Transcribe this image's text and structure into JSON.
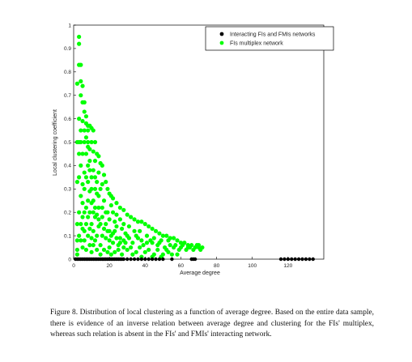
{
  "caption": "Figure 8. Distribution of local clustering as a function of average degree. Based on the entire data sample, there is evidence of an inverse relation between average degree and clustering for the FIs' multiplex, whereas such relation is absent in the FIs' and FMIs' interacting network.",
  "chart_data": {
    "type": "scatter",
    "xlabel": "Average degree",
    "ylabel": "Local clustering coefficient",
    "xlim": [
      0,
      140
    ],
    "ylim": [
      0,
      1
    ],
    "x_ticks": [
      "0",
      "20",
      "40",
      "60",
      "80",
      "100",
      "120"
    ],
    "y_ticks": [
      "0",
      "0.1",
      "0.2",
      "0.3",
      "0.4",
      "0.5",
      "0.6",
      "0.7",
      "0.8",
      "0.9",
      "1"
    ],
    "legend_position": "top-right",
    "grid": false,
    "series": [
      {
        "name": "Interacting FIs and FMIs networks",
        "color": "#000000",
        "points": [
          [
            1,
            0
          ],
          [
            2,
            0
          ],
          [
            3,
            0
          ],
          [
            4,
            0
          ],
          [
            5,
            0
          ],
          [
            6,
            0
          ],
          [
            7,
            0
          ],
          [
            8,
            0
          ],
          [
            9,
            0
          ],
          [
            10,
            0
          ],
          [
            11,
            0
          ],
          [
            12,
            0
          ],
          [
            13,
            0
          ],
          [
            14,
            0
          ],
          [
            15,
            0
          ],
          [
            16,
            0
          ],
          [
            17,
            0
          ],
          [
            18,
            0
          ],
          [
            19,
            0
          ],
          [
            20,
            0
          ],
          [
            21,
            0
          ],
          [
            22,
            0
          ],
          [
            23,
            0
          ],
          [
            24,
            0
          ],
          [
            25,
            0
          ],
          [
            26,
            0
          ],
          [
            27,
            0
          ],
          [
            28,
            0
          ],
          [
            30,
            0
          ],
          [
            32,
            0
          ],
          [
            34,
            0
          ],
          [
            36,
            0
          ],
          [
            38,
            0
          ],
          [
            40,
            0
          ],
          [
            42,
            0
          ],
          [
            44,
            0
          ],
          [
            46,
            0
          ],
          [
            48,
            0
          ],
          [
            50,
            0
          ],
          [
            55,
            0
          ],
          [
            66,
            0
          ],
          [
            67,
            0
          ],
          [
            68,
            0
          ],
          [
            116,
            0
          ],
          [
            118,
            0
          ],
          [
            120,
            0
          ],
          [
            122,
            0
          ],
          [
            124,
            0
          ],
          [
            126,
            0
          ],
          [
            128,
            0
          ],
          [
            130,
            0
          ],
          [
            132,
            0
          ],
          [
            134,
            0
          ]
        ]
      },
      {
        "name": "FIs multiplex network",
        "color": "#00ff00",
        "points": [
          [
            3,
            0.95
          ],
          [
            3,
            0.92
          ],
          [
            3,
            0.83
          ],
          [
            4,
            0.83
          ],
          [
            2,
            0.75
          ],
          [
            4,
            0.76
          ],
          [
            5,
            0.74
          ],
          [
            4,
            0.7
          ],
          [
            5,
            0.67
          ],
          [
            6,
            0.67
          ],
          [
            6,
            0.63
          ],
          [
            7,
            0.61
          ],
          [
            5,
            0.59
          ],
          [
            7,
            0.58
          ],
          [
            8,
            0.57
          ],
          [
            9,
            0.57
          ],
          [
            10,
            0.56
          ],
          [
            8,
            0.55
          ],
          [
            11,
            0.55
          ],
          [
            2,
            0.5
          ],
          [
            3,
            0.5
          ],
          [
            4,
            0.5
          ],
          [
            6,
            0.5
          ],
          [
            8,
            0.5
          ],
          [
            10,
            0.5
          ],
          [
            12,
            0.5
          ],
          [
            9,
            0.47
          ],
          [
            11,
            0.46
          ],
          [
            13,
            0.45
          ],
          [
            14,
            0.44
          ],
          [
            12,
            0.42
          ],
          [
            15,
            0.41
          ],
          [
            16,
            0.4
          ],
          [
            6,
            0.37
          ],
          [
            14,
            0.37
          ],
          [
            17,
            0.36
          ],
          [
            18,
            0.33
          ],
          [
            2,
            0.33
          ],
          [
            16,
            0.32
          ],
          [
            19,
            0.3
          ],
          [
            20,
            0.28
          ],
          [
            21,
            0.27
          ],
          [
            22,
            0.26
          ],
          [
            24,
            0.24
          ],
          [
            26,
            0.22
          ],
          [
            28,
            0.21
          ],
          [
            30,
            0.19
          ],
          [
            32,
            0.18
          ],
          [
            34,
            0.17
          ],
          [
            36,
            0.16
          ],
          [
            38,
            0.16
          ],
          [
            40,
            0.15
          ],
          [
            42,
            0.14
          ],
          [
            44,
            0.13
          ],
          [
            46,
            0.12
          ],
          [
            48,
            0.11
          ],
          [
            50,
            0.1
          ],
          [
            52,
            0.1
          ],
          [
            54,
            0.09
          ],
          [
            56,
            0.09
          ],
          [
            58,
            0.08
          ],
          [
            60,
            0.07
          ],
          [
            62,
            0.07
          ],
          [
            64,
            0.06
          ],
          [
            66,
            0.06
          ],
          [
            68,
            0.05
          ],
          [
            70,
            0.05
          ],
          [
            72,
            0.05
          ],
          [
            2,
            0.08
          ],
          [
            2,
            0.04
          ],
          [
            2,
            0.02
          ],
          [
            5,
            0.13
          ],
          [
            8,
            0.1
          ],
          [
            12,
            0.08
          ],
          [
            15,
            0.06
          ],
          [
            20,
            0.05
          ],
          [
            25,
            0.04
          ],
          [
            30,
            0.04
          ],
          [
            35,
            0.03
          ],
          [
            40,
            0.03
          ],
          [
            45,
            0.02
          ],
          [
            50,
            0.02
          ],
          [
            55,
            0.02
          ],
          [
            58,
            0.02
          ],
          [
            3,
            0.2
          ],
          [
            4,
            0.27
          ],
          [
            5,
            0.32
          ],
          [
            7,
            0.45
          ],
          [
            8,
            0.48
          ],
          [
            9,
            0.38
          ],
          [
            10,
            0.3
          ],
          [
            11,
            0.25
          ],
          [
            12,
            0.35
          ],
          [
            13,
            0.28
          ],
          [
            14,
            0.22
          ],
          [
            16,
            0.18
          ],
          [
            18,
            0.15
          ],
          [
            20,
            0.12
          ],
          [
            22,
            0.11
          ],
          [
            24,
            0.14
          ],
          [
            26,
            0.09
          ],
          [
            28,
            0.08
          ],
          [
            30,
            0.1
          ],
          [
            33,
            0.07
          ],
          [
            36,
            0.09
          ],
          [
            39,
            0.06
          ],
          [
            43,
            0.08
          ],
          [
            47,
            0.06
          ],
          [
            51,
            0.05
          ],
          [
            54,
            0.06
          ],
          [
            59,
            0.04
          ],
          [
            63,
            0.04
          ],
          [
            67,
            0.04
          ],
          [
            26,
            0.17
          ],
          [
            28,
            0.15
          ],
          [
            31,
            0.14
          ],
          [
            34,
            0.12
          ],
          [
            37,
            0.12
          ],
          [
            41,
            0.1
          ],
          [
            45,
            0.09
          ],
          [
            49,
            0.08
          ],
          [
            53,
            0.08
          ],
          [
            57,
            0.06
          ],
          [
            61,
            0.06
          ],
          [
            65,
            0.05
          ],
          [
            69,
            0.06
          ],
          [
            22,
            0.2
          ],
          [
            24,
            0.19
          ],
          [
            21,
            0.23
          ],
          [
            23,
            0.16
          ],
          [
            19,
            0.2
          ],
          [
            17,
            0.25
          ],
          [
            15,
            0.3
          ],
          [
            13,
            0.33
          ],
          [
            11,
            0.38
          ],
          [
            9,
            0.42
          ],
          [
            7,
            0.52
          ],
          [
            6,
            0.55
          ],
          [
            5,
            0.45
          ],
          [
            4,
            0.4
          ],
          [
            3,
            0.35
          ],
          [
            5,
            0.24
          ],
          [
            6,
            0.2
          ],
          [
            7,
            0.15
          ],
          [
            8,
            0.25
          ],
          [
            9,
            0.2
          ],
          [
            10,
            0.15
          ],
          [
            11,
            0.12
          ],
          [
            12,
            0.18
          ],
          [
            13,
            0.1
          ],
          [
            14,
            0.14
          ],
          [
            16,
            0.1
          ],
          [
            18,
            0.09
          ],
          [
            20,
            0.08
          ],
          [
            22,
            0.07
          ],
          [
            25,
            0.06
          ],
          [
            28,
            0.05
          ],
          [
            32,
            0.05
          ],
          [
            37,
            0.05
          ],
          [
            42,
            0.04
          ],
          [
            47,
            0.04
          ],
          [
            52,
            0.04
          ],
          [
            5,
            0.05
          ],
          [
            6,
            0.08
          ],
          [
            7,
            0.04
          ],
          [
            9,
            0.06
          ],
          [
            10,
            0.03
          ],
          [
            11,
            0.06
          ],
          [
            13,
            0.04
          ],
          [
            15,
            0.02
          ],
          [
            17,
            0.04
          ],
          [
            19,
            0.03
          ],
          [
            21,
            0.02
          ],
          [
            23,
            0.03
          ],
          [
            27,
            0.02
          ],
          [
            33,
            0.02
          ],
          [
            38,
            0.01
          ],
          [
            44,
            0.01
          ],
          [
            49,
            0.01
          ],
          [
            53,
            0.03
          ],
          [
            3,
            0.6
          ],
          [
            4,
            0.55
          ],
          [
            8,
            0.4
          ],
          [
            10,
            0.35
          ],
          [
            12,
            0.3
          ],
          [
            14,
            0.27
          ],
          [
            16,
            0.22
          ],
          [
            18,
            0.2
          ],
          [
            20,
            0.17
          ],
          [
            23,
            0.12
          ],
          [
            27,
            0.13
          ],
          [
            29,
            0.11
          ],
          [
            31,
            0.09
          ],
          [
            35,
            0.1
          ],
          [
            38,
            0.08
          ],
          [
            41,
            0.07
          ],
          [
            44,
            0.07
          ],
          [
            48,
            0.07
          ],
          [
            56,
            0.05
          ],
          [
            60,
            0.05
          ],
          [
            64,
            0.05
          ],
          [
            70,
            0.06
          ],
          [
            71,
            0.04
          ],
          [
            6,
            0.3
          ],
          [
            7,
            0.35
          ],
          [
            8,
            0.33
          ],
          [
            9,
            0.29
          ],
          [
            10,
            0.24
          ],
          [
            11,
            0.2
          ],
          [
            12,
            0.22
          ],
          [
            13,
            0.19
          ],
          [
            14,
            0.17
          ],
          [
            15,
            0.15
          ],
          [
            17,
            0.13
          ],
          [
            19,
            0.12
          ],
          [
            21,
            0.1
          ],
          [
            24,
            0.09
          ],
          [
            26,
            0.07
          ],
          [
            29,
            0.07
          ],
          [
            4,
            0.15
          ],
          [
            5,
            0.18
          ],
          [
            6,
            0.12
          ],
          [
            7,
            0.22
          ],
          [
            8,
            0.18
          ],
          [
            9,
            0.13
          ],
          [
            10,
            0.09
          ],
          [
            3,
            0.1
          ],
          [
            4,
            0.08
          ],
          [
            3,
            0.45
          ],
          [
            2,
            0.15
          ]
        ]
      }
    ]
  }
}
